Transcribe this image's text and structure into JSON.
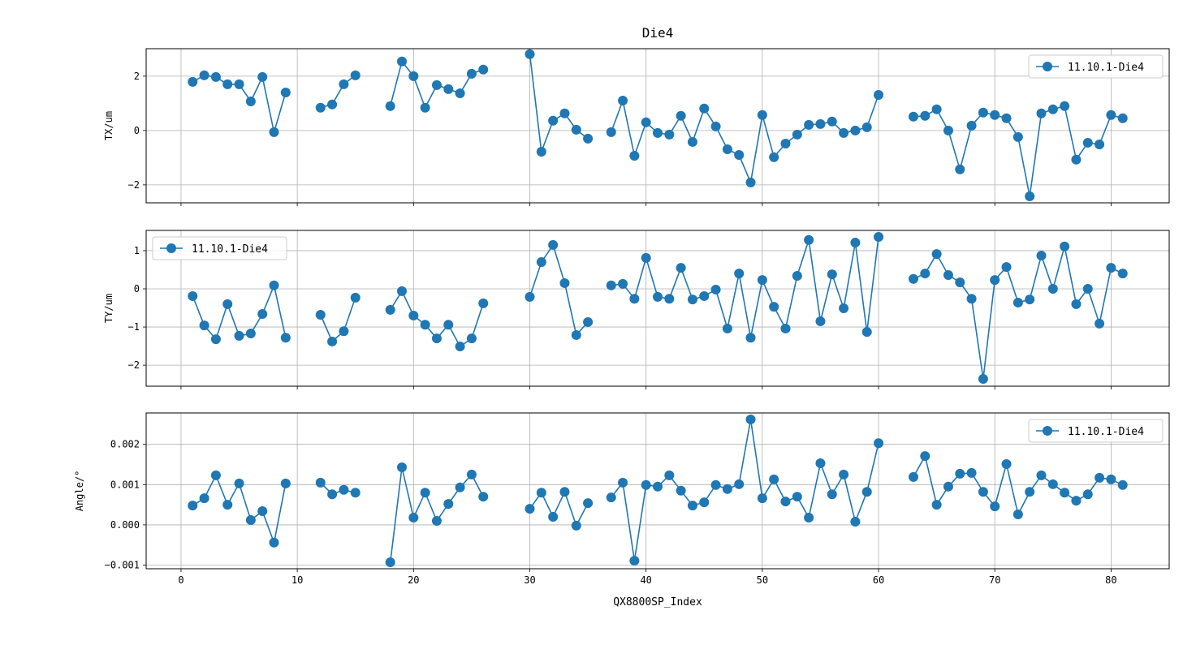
{
  "chart_data": {
    "type": "line",
    "title": "Die4",
    "xlabel": "QX8800SP_Index",
    "xlim": [
      -3,
      85
    ],
    "xticks": [
      0,
      10,
      20,
      30,
      40,
      50,
      60,
      70,
      80
    ],
    "grid": true,
    "color": "#1f77b4",
    "marker": "circle",
    "x": [
      1,
      2,
      3,
      4,
      5,
      6,
      7,
      8,
      9,
      10,
      11,
      12,
      13,
      14,
      15,
      16,
      17,
      18,
      19,
      20,
      21,
      22,
      23,
      24,
      25,
      26,
      27,
      28,
      29,
      30,
      31,
      32,
      33,
      34,
      35,
      36,
      37,
      38,
      39,
      40,
      41,
      42,
      43,
      44,
      45,
      46,
      47,
      48,
      49,
      50,
      51,
      52,
      53,
      54,
      55,
      56,
      57,
      58,
      59,
      60,
      61,
      62,
      63,
      64,
      65,
      66,
      67,
      68,
      69,
      70,
      71,
      72,
      73,
      74,
      75,
      76,
      77,
      78,
      79,
      80,
      81
    ],
    "panels": [
      {
        "ylabel": "TX/um",
        "ylim": [
          -2.66,
          3.01
        ],
        "yticks": [
          -2,
          0,
          2
        ],
        "ytick_labels": [
          "−2",
          "0",
          "2"
        ],
        "legend": "upper-right",
        "series": [
          {
            "name": "11.10.1-Die4",
            "values": [
              1.79,
              2.03,
              1.97,
              1.7,
              1.7,
              1.07,
              1.97,
              -0.06,
              1.4,
              null,
              null,
              0.84,
              0.96,
              1.7,
              2.03,
              null,
              null,
              0.9,
              2.54,
              2.0,
              0.84,
              1.67,
              1.52,
              1.37,
              2.09,
              2.24,
              null,
              null,
              null,
              2.81,
              -0.78,
              0.36,
              0.63,
              0.03,
              -0.3,
              null,
              -0.06,
              1.1,
              -0.93,
              0.3,
              -0.09,
              -0.15,
              0.54,
              -0.42,
              0.81,
              0.15,
              -0.69,
              -0.9,
              -1.91,
              0.57,
              -0.98,
              -0.48,
              -0.15,
              0.21,
              0.24,
              0.33,
              -0.09,
              0.0,
              0.12,
              1.31,
              null,
              null,
              0.51,
              0.54,
              0.78,
              0.0,
              -1.43,
              0.18,
              0.66,
              0.57,
              0.45,
              -0.24,
              -2.42,
              0.63,
              0.78,
              0.9,
              -1.07,
              -0.45,
              -0.51,
              0.57,
              0.45
            ]
          }
        ]
      },
      {
        "ylabel": "TY/um",
        "ylim": [
          -2.55,
          1.53
        ],
        "yticks": [
          -2,
          -1,
          0,
          1
        ],
        "ytick_labels": [
          "−2",
          "−1",
          "0",
          "1"
        ],
        "legend": "upper-left",
        "series": [
          {
            "name": "11.10.1-Die4",
            "values": [
              -0.19,
              -0.96,
              -1.32,
              -0.4,
              -1.23,
              -1.17,
              -0.66,
              0.09,
              -1.28,
              null,
              null,
              -0.68,
              -1.38,
              -1.11,
              -0.23,
              null,
              null,
              -0.55,
              -0.06,
              -0.7,
              -0.94,
              -1.3,
              -0.94,
              -1.51,
              -1.3,
              -0.38,
              null,
              null,
              null,
              -0.21,
              0.7,
              1.15,
              0.15,
              -1.21,
              -0.87,
              null,
              0.09,
              0.13,
              -0.26,
              0.81,
              -0.21,
              -0.26,
              0.55,
              -0.28,
              -0.19,
              -0.02,
              -1.04,
              0.4,
              -1.28,
              0.23,
              -0.47,
              -1.04,
              0.34,
              1.28,
              -0.85,
              0.38,
              -0.51,
              1.21,
              -1.13,
              1.36,
              null,
              null,
              0.26,
              0.4,
              0.91,
              0.36,
              0.17,
              -0.26,
              -2.36,
              0.23,
              0.57,
              -0.36,
              -0.28,
              0.87,
              0.0,
              1.11,
              -0.4,
              0.0,
              -0.91,
              0.55,
              0.4
            ]
          }
        ]
      },
      {
        "ylabel": "Angle/°",
        "ylim": [
          -0.00109,
          0.00278
        ],
        "yticks": [
          -0.001,
          0.0,
          0.001,
          0.002
        ],
        "ytick_labels": [
          "−0.001",
          "0.000",
          "0.001",
          "0.002"
        ],
        "legend": "upper-right",
        "series": [
          {
            "name": "11.10.1-Die4",
            "values": [
              0.00048,
              0.00066,
              0.00123,
              0.0005,
              0.00103,
              0.00012,
              0.00034,
              -0.00044,
              0.00103,
              null,
              null,
              0.00105,
              0.00076,
              0.00087,
              0.0008,
              null,
              null,
              -0.00093,
              0.00143,
              0.00018,
              0.0008,
              0.0001,
              0.00052,
              0.00093,
              0.00125,
              0.0007,
              null,
              null,
              null,
              0.0004,
              0.0008,
              0.0002,
              0.00082,
              -2e-05,
              0.00054,
              null,
              0.00068,
              0.00105,
              -0.00089,
              0.00099,
              0.00095,
              0.00123,
              0.00085,
              0.00048,
              0.00056,
              0.00099,
              0.00089,
              0.00101,
              0.00262,
              0.00066,
              0.00113,
              0.00058,
              0.0007,
              0.00018,
              0.00153,
              0.00076,
              0.00125,
              8e-05,
              0.00082,
              0.00203,
              null,
              null,
              0.00119,
              0.00171,
              0.0005,
              0.00095,
              0.00127,
              0.00129,
              0.00082,
              0.00046,
              0.00151,
              0.00026,
              0.00082,
              0.00123,
              0.00101,
              0.0008,
              0.0006,
              0.00076,
              0.00117,
              0.00113,
              0.00099
            ]
          }
        ]
      }
    ]
  }
}
